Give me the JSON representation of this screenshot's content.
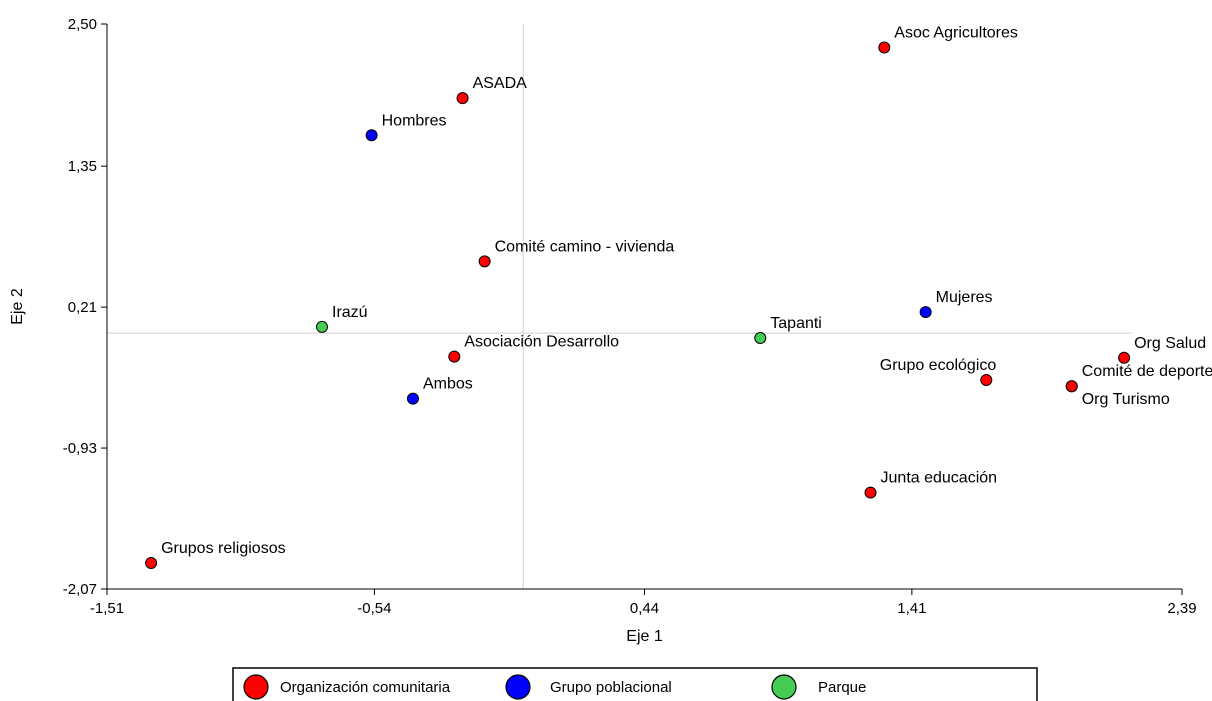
{
  "chart_data": {
    "type": "scatter",
    "xlabel": "Eje 1",
    "ylabel": "Eje 2",
    "xlim": [
      -1.51,
      2.39
    ],
    "ylim": [
      -2.07,
      2.5
    ],
    "x_ticks": [
      "-1,51",
      "-0,54",
      "0,44",
      "1,41",
      "2,39"
    ],
    "x_tick_values": [
      -1.51,
      -0.54,
      0.44,
      1.41,
      2.39
    ],
    "y_ticks": [
      "2,50",
      "1,35",
      "0,21",
      "-0,93",
      "-2,07"
    ],
    "y_tick_values": [
      2.5,
      1.35,
      0.21,
      -0.93,
      -2.07
    ],
    "reference_lines": {
      "x": 0.0,
      "y": 0.0
    },
    "grid": false,
    "legend_position": "bottom",
    "series": [
      {
        "name": "Organización comunitaria",
        "color": "#ff0000",
        "points": [
          {
            "label": "Asoc Agricultores",
            "x": 1.31,
            "y": 2.31,
            "label_pos": "above-right"
          },
          {
            "label": "ASADA",
            "x": -0.22,
            "y": 1.9,
            "label_pos": "above-right"
          },
          {
            "label": "Comité camino - vivienda",
            "x": -0.14,
            "y": 0.58,
            "label_pos": "above-right"
          },
          {
            "label": "Asociación Desarrollo",
            "x": -0.25,
            "y": -0.19,
            "label_pos": "above-right"
          },
          {
            "label": "Grupo ecológico",
            "x": 1.68,
            "y": -0.38,
            "label_pos": "above-left"
          },
          {
            "label": "Comité de deportes",
            "x": 1.99,
            "y": -0.43,
            "label_pos": "above-right"
          },
          {
            "label": "Org Turismo",
            "x": 1.99,
            "y": -0.43,
            "label_pos": "below-right"
          },
          {
            "label": "Org Salud",
            "x": 2.18,
            "y": -0.2,
            "label_pos": "above-right"
          },
          {
            "label": "Junta educación",
            "x": 1.26,
            "y": -1.29,
            "label_pos": "above-right"
          },
          {
            "label": "Grupos religiosos",
            "x": -1.35,
            "y": -1.86,
            "label_pos": "above-right"
          }
        ]
      },
      {
        "name": "Grupo poblacional",
        "color": "#0000ff",
        "points": [
          {
            "label": "Hombres",
            "x": -0.55,
            "y": 1.6,
            "label_pos": "above-right"
          },
          {
            "label": "Mujeres",
            "x": 1.46,
            "y": 0.17,
            "label_pos": "above-right"
          },
          {
            "label": "Ambos",
            "x": -0.4,
            "y": -0.53,
            "label_pos": "above-right"
          }
        ]
      },
      {
        "name": "Parque",
        "color": "#44cc55",
        "points": [
          {
            "label": "Irazú",
            "x": -0.73,
            "y": 0.05,
            "label_pos": "above-right"
          },
          {
            "label": "Tapanti",
            "x": 0.86,
            "y": -0.04,
            "label_pos": "above-right"
          }
        ]
      }
    ]
  }
}
